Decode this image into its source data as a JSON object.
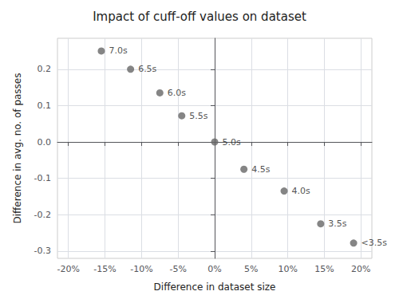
{
  "chart_data": {
    "type": "scatter",
    "title": "Impact of cuff-off values on dataset",
    "xlabel": "Difference in dataset size",
    "ylabel": "Difference in avg. no. of passes",
    "x": [
      -0.155,
      -0.115,
      -0.075,
      -0.045,
      0.0,
      0.04,
      0.095,
      0.145,
      0.19
    ],
    "values": [
      0.25,
      0.2,
      0.135,
      0.072,
      0.0,
      -0.075,
      -0.135,
      -0.225,
      -0.278
    ],
    "annotations": [
      "7.0s",
      "6.5s",
      "6.0s",
      "5.5s",
      "5.0s",
      "4.5s",
      "4.0s",
      "3.5s",
      "<3.5s"
    ],
    "color": "#666666",
    "xlim": [
      -0.215,
      0.215
    ],
    "ylim": [
      -0.32,
      0.285
    ],
    "xticks": [
      {
        "value": -0.2,
        "label": "-20%"
      },
      {
        "value": -0.15,
        "label": "-15%"
      },
      {
        "value": -0.1,
        "label": "-10%"
      },
      {
        "value": -0.05,
        "label": "-5%"
      },
      {
        "value": 0.0,
        "label": "0%"
      },
      {
        "value": 0.05,
        "label": "5%"
      },
      {
        "value": 0.1,
        "label": "10%"
      },
      {
        "value": 0.15,
        "label": "15%"
      },
      {
        "value": 0.2,
        "label": "20%"
      }
    ],
    "yticks": [
      -0.3,
      -0.2,
      -0.1,
      {
        "value": 0.0,
        "label": "0.0"
      },
      0.1,
      0.2
    ],
    "grid": true
  }
}
